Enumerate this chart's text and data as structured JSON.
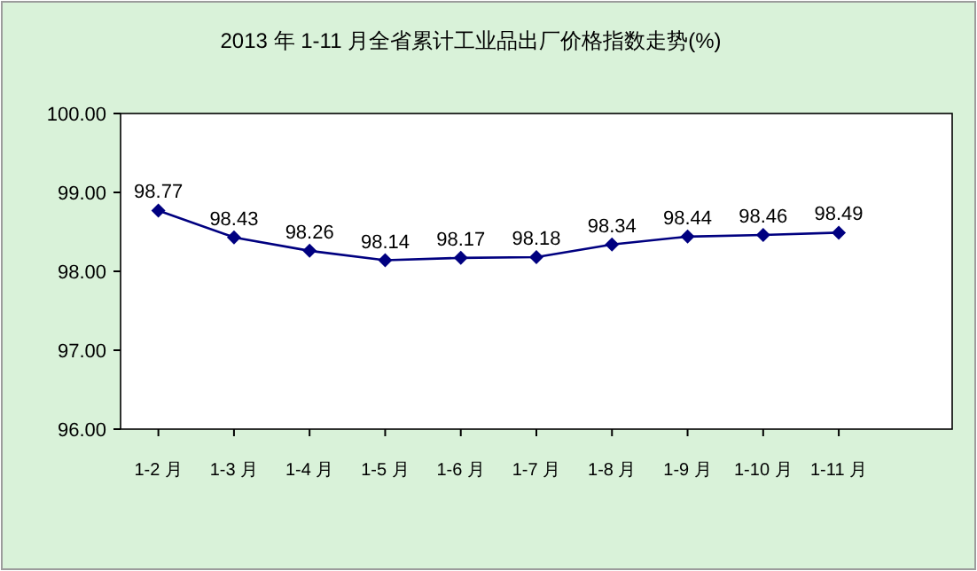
{
  "chart_data": {
    "type": "line",
    "title": "2013 年 1-11 月全省累计工业品出厂价格指数走势(%)",
    "categories": [
      "1-2 月",
      "1-3 月",
      "1-4 月",
      "1-5 月",
      "1-6 月",
      "1-7 月",
      "1-8 月",
      "1-9 月",
      "1-10 月",
      "1-11 月"
    ],
    "series": [
      {
        "color": "#000080",
        "values": [
          98.77,
          98.43,
          98.26,
          98.14,
          98.17,
          98.18,
          98.34,
          98.44,
          98.46,
          98.49
        ]
      }
    ],
    "ylim": [
      96,
      100
    ],
    "yticks": [
      {
        "value": 96,
        "label": "96.00"
      },
      {
        "value": 97,
        "label": "97.00"
      },
      {
        "value": 98,
        "label": "98.00"
      },
      {
        "value": 99,
        "label": "99.00"
      },
      {
        "value": 100,
        "label": "100.00"
      }
    ],
    "marker": "diamond",
    "line_style": "solid",
    "data_labels": true,
    "grid": false
  }
}
